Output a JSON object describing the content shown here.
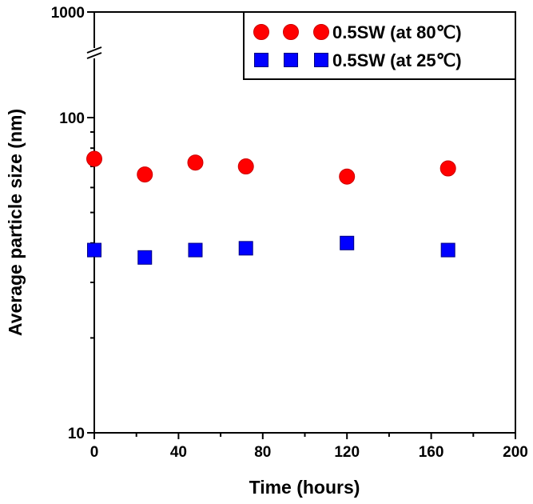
{
  "chart_data": {
    "type": "scatter",
    "xlabel": "Time (hours)",
    "ylabel": "Average particle size (nm)",
    "xlim": [
      0,
      200
    ],
    "ylim": [
      10,
      1000
    ],
    "yscale": "log",
    "y_axis_break": true,
    "x_ticks": [
      "0",
      "40",
      "80",
      "120",
      "160",
      "200"
    ],
    "y_ticks": [
      "10",
      "100",
      "1000"
    ],
    "grid": false,
    "legend_position": "top-right",
    "series": [
      {
        "name": "0.5SW (at 80℃)",
        "marker": "circle",
        "color": "#ff0000",
        "x": [
          0,
          24,
          48,
          72,
          120,
          168
        ],
        "y": [
          74,
          66,
          72,
          70,
          65,
          69
        ]
      },
      {
        "name": "0.5SW (at 25℃)",
        "marker": "square",
        "color": "#0000ff",
        "x": [
          0,
          24,
          48,
          72,
          120,
          168
        ],
        "y": [
          38,
          36,
          38,
          38.5,
          40,
          38
        ]
      }
    ]
  }
}
